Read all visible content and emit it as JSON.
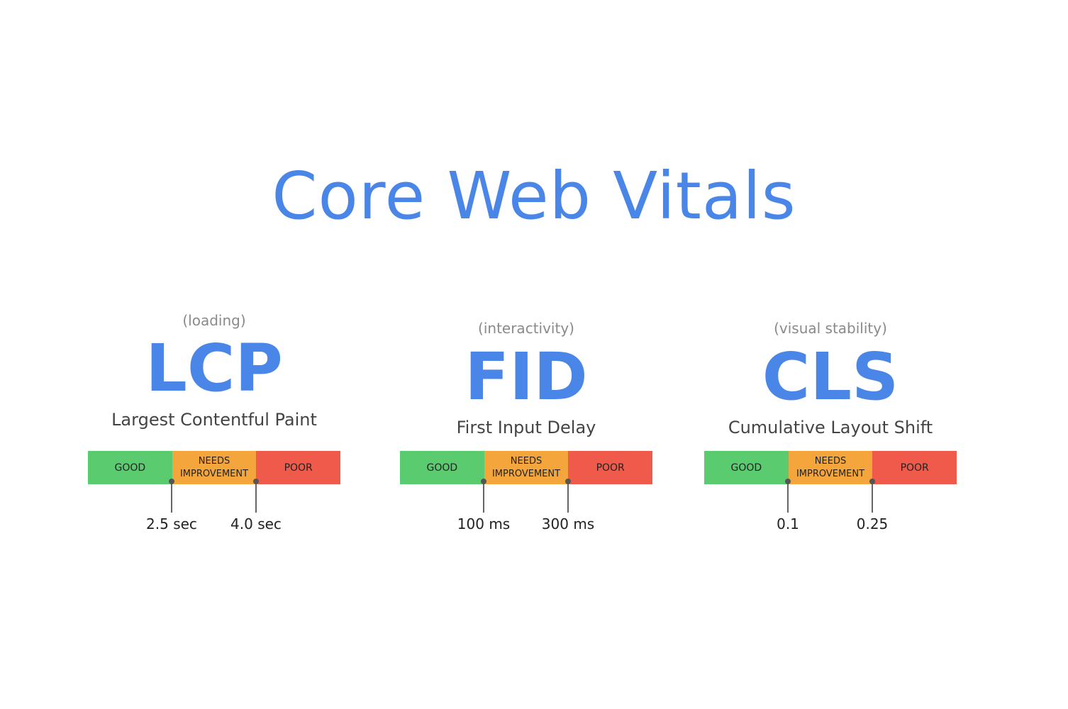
{
  "title": "Core Web Vitals",
  "colors": {
    "accent": "#4a86e8",
    "good": "#5bcb6f",
    "needs": "#f4a63c",
    "poor": "#ef5a4a"
  },
  "scale_labels": {
    "good": "GOOD",
    "needs_line1": "NEEDS",
    "needs_line2": "IMPROVEMENT",
    "poor": "POOR"
  },
  "metrics": [
    {
      "category": "(loading)",
      "abbr": "LCP",
      "name": "Largest Contentful Paint",
      "threshold_good": "2.5 sec",
      "threshold_poor": "4.0 sec"
    },
    {
      "category": "(interactivity)",
      "abbr": "FID",
      "name": "First Input Delay",
      "threshold_good": "100 ms",
      "threshold_poor": "300 ms"
    },
    {
      "category": "(visual stability)",
      "abbr": "CLS",
      "name": "Cumulative Layout Shift",
      "threshold_good": "0.1",
      "threshold_poor": "0.25"
    }
  ]
}
